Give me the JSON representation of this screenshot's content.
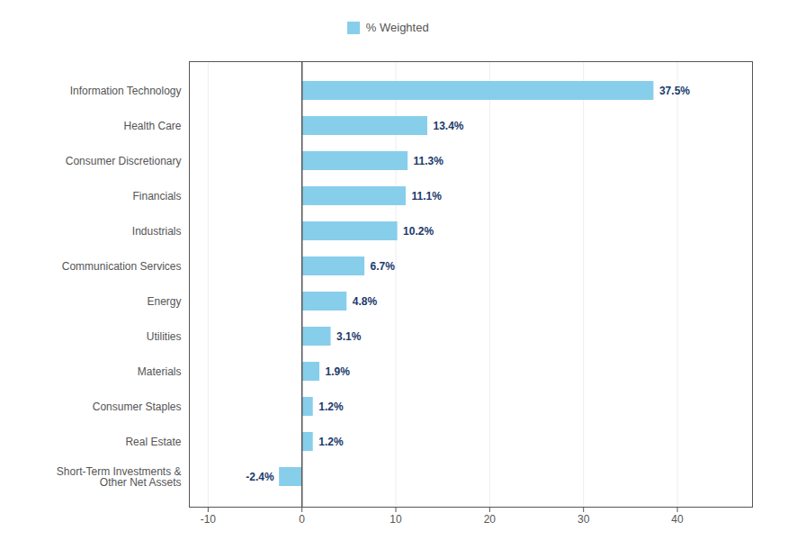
{
  "chart_data": {
    "type": "bar",
    "orientation": "horizontal",
    "categories": [
      "Information Technology",
      "Health Care",
      "Consumer Discretionary",
      "Financials",
      "Industrials",
      "Communication Services",
      "Energy",
      "Utilities",
      "Materials",
      "Consumer Staples",
      "Real Estate",
      "Short-Term Investments &\nOther Net Assets"
    ],
    "series": [
      {
        "name": "% Weighted",
        "color": "#87CEEB",
        "values": [
          37.5,
          13.4,
          11.3,
          11.1,
          10.2,
          6.7,
          4.8,
          3.1,
          1.9,
          1.2,
          1.2,
          -2.4
        ],
        "value_labels": [
          "37.5%",
          "13.4%",
          "11.3%",
          "11.1%",
          "10.2%",
          "6.7%",
          "4.8%",
          "3.1%",
          "1.9%",
          "1.2%",
          "1.2%",
          "-2.4%"
        ]
      }
    ],
    "xlim": [
      -12,
      48
    ],
    "xticks": [
      -10,
      0,
      10,
      20,
      30,
      40
    ],
    "grid": true,
    "legend": "top",
    "data_labels": true
  }
}
